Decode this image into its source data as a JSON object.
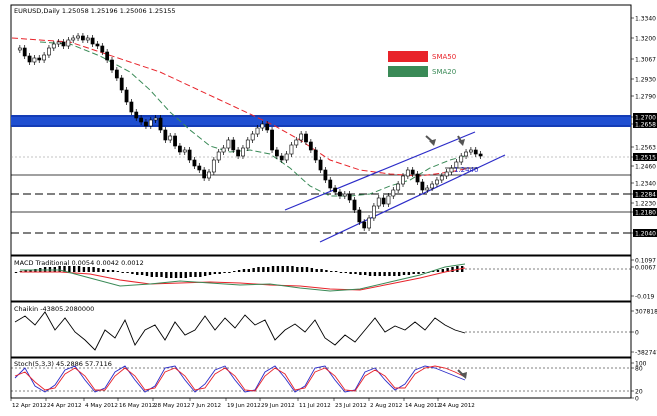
{
  "main_panel": {
    "title": "EURUSD,Daily  1.25058 1.25196 1.25006 1.25155",
    "legend": [
      {
        "label": "SMA50",
        "color": "#e8232a"
      },
      {
        "label": "SMA20",
        "color": "#3a8a57"
      }
    ],
    "annotation": "1.2440",
    "price_labels": [
      "1.3340",
      "1.3200",
      "1.3067",
      "1.2930",
      "1.2790",
      "1.2700",
      "1.2658",
      "1.2563",
      "1.2515",
      "1.2460",
      "1.2340",
      "1.2284",
      "1.2230",
      "1.2180",
      "1.2040"
    ],
    "highlighted_labels": [
      "1.2700",
      "1.2658",
      "1.2515",
      "1.2284",
      "1.2180",
      "1.2040"
    ],
    "channel_color": "#2c2cc8",
    "resistance_band_color": "#1f4fd1"
  },
  "macd_panel": {
    "title": "MACD Traditional 0.0054 0.0042 0.0012",
    "scale_labels": [
      "0.1097",
      "0.0067",
      "-0.019"
    ]
  },
  "chaikin_panel": {
    "title": "Chaikin -43805.2080000",
    "scale_labels": [
      "307818",
      "0",
      "-382747"
    ]
  },
  "stoch_panel": {
    "title": "Stoch(5,3,3) 45.2886 57.7116",
    "scale_labels": [
      "100",
      "80",
      "20",
      "0"
    ]
  },
  "time_axis": [
    "12 Apr 2012",
    "24 Apr 2012",
    "4 May 2012",
    "16 May 2012",
    "28 May 2012",
    "7 Jun 2012",
    "19 Jun 2012",
    "29 Jun 2012",
    "11 Jul 2012",
    "23 Jul 2012",
    "2 Aug 2012",
    "14 Aug 2012",
    "24 Aug 2012"
  ]
}
